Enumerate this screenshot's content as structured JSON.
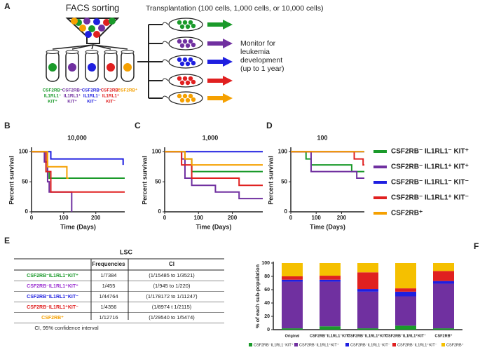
{
  "panel_labels": [
    "A",
    "B",
    "C",
    "D",
    "E",
    "F"
  ],
  "diagram": {
    "sorting_title": "FACS sorting",
    "transplant_title": "Transplantation (100 cells, 1,000 cells, or 10,000 cells)",
    "monitor_lines": [
      "Monitor for",
      "leukemia",
      "development",
      "(up to 1 year)"
    ],
    "tubes": [
      {
        "color": "#1a9a2a",
        "label": [
          "CSF2RB⁻",
          "IL1RL1⁻",
          "KIT⁺"
        ]
      },
      {
        "color": "#7030a0",
        "label": [
          "CSF2RB⁻",
          "IL1RL1⁺",
          "KIT⁺"
        ]
      },
      {
        "color": "#1f1fe0",
        "label": [
          "CSF2RB⁻",
          "IL1RL1⁻",
          "KIT⁻"
        ]
      },
      {
        "color": "#e02020",
        "label": [
          "CSF2RB⁻",
          "IL1RL1⁺",
          "KIT⁻"
        ]
      },
      {
        "color": "#f5a000",
        "label": [
          "CSF2RB⁺"
        ]
      }
    ]
  },
  "chart_data": [
    {
      "type": "step",
      "title": "10,000",
      "x_label": "Time (Days)",
      "y_label": "Percent survival",
      "xlim": [
        0,
        290
      ],
      "ylim": [
        0,
        105
      ],
      "xticks": [
        0,
        100,
        200
      ],
      "yticks": [
        0,
        50,
        100
      ],
      "series": [
        {
          "color": "#1a9a2a",
          "x": [
            0,
            45,
            55,
            290
          ],
          "values": [
            100,
            67,
            56,
            56
          ]
        },
        {
          "color": "#7030a0",
          "x": [
            0,
            40,
            50,
            55,
            125
          ],
          "values": [
            100,
            83,
            50,
            33,
            0
          ]
        },
        {
          "color": "#1f1fe0",
          "x": [
            0,
            60,
            285
          ],
          "values": [
            100,
            88,
            78
          ]
        },
        {
          "color": "#e02020",
          "x": [
            0,
            45,
            60,
            290
          ],
          "values": [
            100,
            67,
            33,
            33
          ]
        },
        {
          "color": "#f5a000",
          "x": [
            0,
            50,
            110,
            115
          ],
          "values": [
            100,
            75,
            56,
            56
          ]
        }
      ]
    },
    {
      "type": "step",
      "title": "1,000",
      "x_label": "Time (Days)",
      "y_label": "Percent survival",
      "xlim": [
        0,
        290
      ],
      "ylim": [
        0,
        105
      ],
      "xticks": [
        0,
        100,
        200
      ],
      "yticks": [
        0,
        50,
        100
      ],
      "series": [
        {
          "color": "#1a9a2a",
          "x": [
            0,
            60,
            80,
            290
          ],
          "values": [
            100,
            88,
            67,
            67
          ]
        },
        {
          "color": "#7030a0",
          "x": [
            0,
            50,
            60,
            80,
            150,
            220,
            290
          ],
          "values": [
            100,
            88,
            56,
            44,
            33,
            22,
            22
          ]
        },
        {
          "color": "#1f1fe0",
          "x": [
            0,
            290
          ],
          "values": [
            100,
            100
          ]
        },
        {
          "color": "#e02020",
          "x": [
            0,
            50,
            80,
            220,
            290
          ],
          "values": [
            100,
            78,
            56,
            44,
            44
          ]
        },
        {
          "color": "#f5a000",
          "x": [
            0,
            60,
            80,
            290
          ],
          "values": [
            100,
            88,
            78,
            78
          ]
        }
      ]
    },
    {
      "type": "step",
      "title": "100",
      "x_label": "Time (Days)",
      "y_label": "Percent survival",
      "xlim": [
        0,
        290
      ],
      "ylim": [
        0,
        105
      ],
      "xticks": [
        0,
        100,
        200
      ],
      "yticks": [
        0,
        50,
        100
      ],
      "series": [
        {
          "name": "CSF2RB⁻ IL1RL1⁻ KIT⁺",
          "color": "#1a9a2a",
          "x": [
            0,
            60,
            80,
            240,
            290
          ],
          "values": [
            100,
            88,
            78,
            67,
            67
          ]
        },
        {
          "name": "CSF2RB⁻ IL1RL1⁺ KIT⁺",
          "color": "#7030a0",
          "x": [
            0,
            80,
            260,
            290
          ],
          "values": [
            100,
            67,
            56,
            56
          ]
        },
        {
          "name": "CSF2RB⁻ IL1RL1⁻ KIT⁻",
          "color": "#1f1fe0",
          "x": [
            0,
            290
          ],
          "values": [
            100,
            100
          ]
        },
        {
          "name": "CSF2RB⁻ IL1RL1⁺ KIT⁻",
          "color": "#e02020",
          "x": [
            0,
            250,
            285,
            290
          ],
          "values": [
            100,
            88,
            78,
            78
          ]
        },
        {
          "name": "CSF2RB⁺",
          "color": "#f5a000",
          "x": [
            0,
            290
          ],
          "values": [
            100,
            100
          ]
        }
      ]
    },
    {
      "type": "stacked_bar",
      "y_label": "% of each sub-population",
      "categories": [
        "Original",
        "CSF2RB⁻IL1RL1⁻KIT⁺",
        "CSF2RB⁻IL1RL1⁺KIT⁺",
        "CSF2RB⁻IL1RL1⁺KIT⁻",
        "CSF2RB⁺"
      ],
      "ylim": [
        0,
        100
      ],
      "yticks": [
        0,
        20,
        40,
        60,
        80,
        100
      ],
      "series": [
        {
          "name": "CSF2RB⁻IL1RL1⁻KIT⁺",
          "color": "#1a9a2a",
          "values": [
            2,
            5,
            2,
            6,
            2
          ]
        },
        {
          "name": "CSF2RB⁻IL1RL1⁺KIT⁺",
          "color": "#7030a0",
          "values": [
            70,
            67,
            55,
            44,
            67
          ]
        },
        {
          "name": "CSF2RB⁻IL1RL1⁻KIT⁻",
          "color": "#1f1fe0",
          "values": [
            3,
            3,
            4,
            7,
            4
          ]
        },
        {
          "name": "CSF2RB⁻IL1RL1⁺KIT⁻",
          "color": "#e02020",
          "values": [
            5,
            6,
            25,
            5,
            15
          ]
        },
        {
          "name": "CSF2RB⁺",
          "color": "#f5c000",
          "values": [
            20,
            19,
            14,
            38,
            12
          ]
        }
      ]
    }
  ],
  "table": {
    "title": "LSC",
    "header": [
      "Frequencies",
      "CI"
    ],
    "rows": [
      {
        "label": "CSF2RB⁻IL1RL1⁻KIT⁺",
        "color": "#1a9a2a",
        "frequency": "1/7384",
        "ci": "(1/15485 to 1/3521)"
      },
      {
        "label": "CSF2RB⁻IL1RL1⁺KIT⁺",
        "color": "#9b30d0",
        "frequency": "1/455",
        "ci": "(1/945 to 1/220)"
      },
      {
        "label": "CSF2RB⁻IL1RL1⁻KIT⁻",
        "color": "#1f1fe0",
        "frequency": "1/44764",
        "ci": "(1/178172 to 1/11247)"
      },
      {
        "label": "CSF2RB⁻IL1RL1⁺KIT⁻",
        "color": "#e02020",
        "frequency": "1/4356",
        "ci": "(1/8974 t 1/2115)"
      },
      {
        "label": "CSF2RB⁺",
        "color": "#f5a000",
        "frequency": "1/12716",
        "ci": "(1/29540 to 1/5474)"
      }
    ],
    "footnote": "CI, 95% confidence interval"
  }
}
